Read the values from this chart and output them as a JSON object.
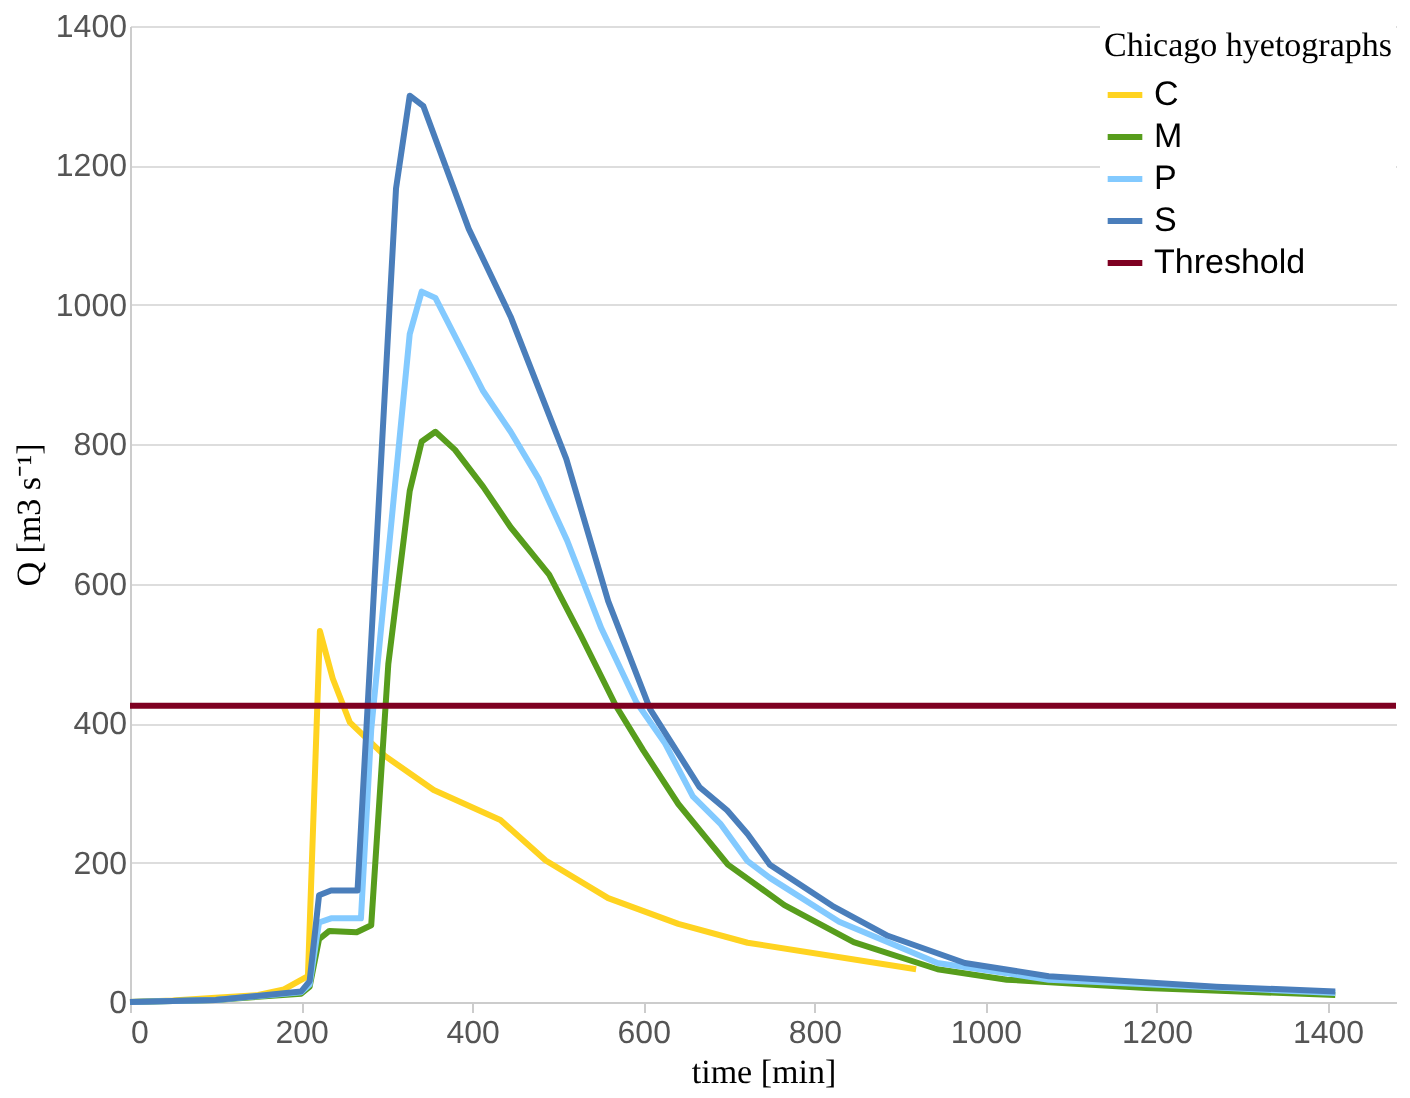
{
  "chart_data": {
    "type": "line",
    "xlabel": "time [min]",
    "ylabel": "Q [m3 s⁻¹]",
    "legend_title": "Chicago hyetographs",
    "xlim": [
      0,
      1480
    ],
    "xticks": [
      0,
      200,
      400,
      600,
      800,
      1000,
      1200,
      1400
    ],
    "ylim": [
      0,
      1400
    ],
    "yticks": [
      0,
      200,
      400,
      600,
      800,
      1000,
      1200,
      1400
    ],
    "grid": "y",
    "legend": "top right",
    "marker": "none",
    "line_style": "solid",
    "series": [
      {
        "name": "C",
        "color": "#ffd320",
        "x": [
          0,
          50,
          100,
          150,
          180,
          208,
          222,
          237,
          257,
          298,
          355,
          433,
          486,
          559,
          641,
          722,
          919
        ],
        "values": [
          0,
          2,
          6,
          10,
          18,
          37,
          532,
          464,
          401,
          353,
          304,
          261,
          203,
          149,
          112,
          85,
          47
        ]
      },
      {
        "name": "M",
        "color": "#579d1c",
        "x": [
          0,
          100,
          200,
          210,
          221,
          233,
          265,
          282,
          302,
          327,
          341,
          357,
          380,
          413,
          445,
          490,
          527,
          568,
          600,
          641,
          699,
          765,
          846,
          944,
          1025,
          1188,
          1409
        ],
        "values": [
          0,
          3,
          12,
          22,
          90,
          102,
          100,
          110,
          485,
          733,
          804,
          818,
          792,
          739,
          681,
          613,
          526,
          425,
          361,
          284,
          197,
          139,
          86,
          47,
          32,
          20,
          10
        ]
      },
      {
        "name": "P",
        "color": "#83caff",
        "x": [
          0,
          100,
          200,
          210,
          221,
          235,
          270,
          282,
          327,
          341,
          357,
          413,
          445,
          478,
          511,
          551,
          592,
          625,
          658,
          690,
          722,
          748,
          829,
          944,
          1074,
          1409
        ],
        "values": [
          0,
          3,
          14,
          25,
          114,
          120,
          120,
          391,
          958,
          1019,
          1010,
          876,
          818,
          750,
          662,
          536,
          430,
          372,
          295,
          256,
          202,
          178,
          115,
          56,
          32,
          13
        ]
      },
      {
        "name": "S",
        "color": "#4a7ebb",
        "x": [
          0,
          100,
          200,
          210,
          221,
          235,
          266,
          311,
          327,
          343,
          396,
          445,
          510,
          559,
          608,
          666,
          698,
          722,
          748,
          821,
          886,
          976,
          1074,
          1270,
          1409
        ],
        "values": [
          0,
          3,
          15,
          30,
          153,
          160,
          160,
          1167,
          1300,
          1285,
          1109,
          983,
          779,
          575,
          420,
          308,
          275,
          241,
          197,
          138,
          95,
          56,
          37,
          22,
          15
        ]
      },
      {
        "name": "Threshold",
        "color": "#7e0021",
        "x": [
          0,
          1480
        ],
        "values": [
          425,
          425
        ]
      }
    ]
  }
}
